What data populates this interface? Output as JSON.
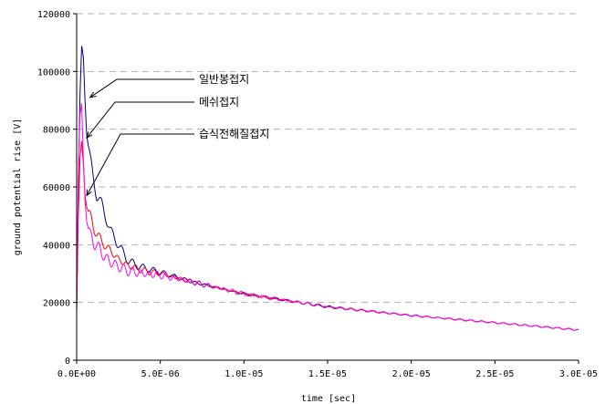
{
  "chart_data": {
    "type": "line",
    "title": "",
    "xlabel": "time [sec]",
    "ylabel": "ground potential rise [V]",
    "xlim": [
      0,
      3e-05
    ],
    "ylim": [
      0,
      120000
    ],
    "x_ticks": [
      0,
      5e-06,
      1e-05,
      1.5e-05,
      2e-05,
      2.5e-05,
      3e-05
    ],
    "x_tick_labels": [
      "0.0E+00",
      "5.0E-06",
      "1.0E-05",
      "1.5E-05",
      "2.0E-05",
      "2.5E-05",
      "3.0E-05"
    ],
    "y_ticks": [
      0,
      20000,
      40000,
      60000,
      80000,
      100000,
      120000
    ],
    "y_tick_labels": [
      "0",
      "20000",
      "40000",
      "60000",
      "80000",
      "100000",
      "120000"
    ],
    "grid": "horizontal-dashed",
    "legend": "none",
    "series": [
      {
        "name": "일반봉접지",
        "color": "#000080",
        "x": [
          0,
          1e-07,
          2e-07,
          3e-07,
          4e-07,
          5e-07,
          6e-07,
          8e-07,
          1e-06,
          1.2e-06,
          1.5e-06,
          2e-06,
          2.5e-06,
          3e-06,
          3.5e-06,
          4e-06,
          5e-06,
          7e-06,
          1e-05,
          1.5e-05,
          2e-05,
          2.5e-05,
          3e-05
        ],
        "y": [
          17000,
          60000,
          92000,
          109000,
          105000,
          90000,
          78000,
          70000,
          63000,
          57000,
          54000,
          45000,
          40000,
          35000,
          33000,
          32000,
          30500,
          27000,
          23000,
          18500,
          15500,
          13000,
          10500
        ]
      },
      {
        "name": "메쉬접지",
        "color": "#ff0000",
        "x": [
          0,
          1e-07,
          2e-07,
          3e-07,
          4e-07,
          5e-07,
          6e-07,
          8e-07,
          1e-06,
          1.2e-06,
          1.5e-06,
          2e-06,
          2.5e-06,
          3e-06,
          3.5e-06,
          4e-06,
          5e-06,
          7e-06,
          1e-05,
          1.5e-05,
          2e-05,
          2.5e-05,
          3e-05
        ],
        "y": [
          16500,
          50000,
          70000,
          76000,
          68000,
          57000,
          53000,
          50000,
          46000,
          44000,
          41000,
          38000,
          35000,
          33000,
          32000,
          31000,
          30000,
          27000,
          23000,
          18500,
          15500,
          13000,
          10500
        ]
      },
      {
        "name": "습식전해질접지",
        "color": "#ff00ff",
        "x": [
          0,
          1e-07,
          2e-07,
          3e-07,
          4e-07,
          5e-07,
          6e-07,
          8e-07,
          1e-06,
          1.2e-06,
          1.5e-06,
          2e-06,
          2.5e-06,
          3e-06,
          3.5e-06,
          4e-06,
          5e-06,
          7e-06,
          1e-05,
          1.5e-05,
          2e-05,
          2.5e-05,
          3e-05
        ],
        "y": [
          18000,
          65000,
          85000,
          89000,
          70000,
          55000,
          48000,
          43000,
          41000,
          40000,
          37000,
          34000,
          32500,
          31000,
          30500,
          30000,
          29500,
          27000,
          23000,
          18500,
          15500,
          13000,
          10500
        ]
      }
    ],
    "annotations": [
      {
        "text": "일반봉접지",
        "series": "일반봉접지",
        "point_x": 8e-07,
        "point_y": 91000
      },
      {
        "text": "메쉬접지",
        "series": "메쉬접지",
        "point_x": 6e-07,
        "point_y": 77000
      },
      {
        "text": "습식전해질접지",
        "series": "습식전해질접지",
        "point_x": 6e-07,
        "point_y": 57000
      }
    ]
  }
}
